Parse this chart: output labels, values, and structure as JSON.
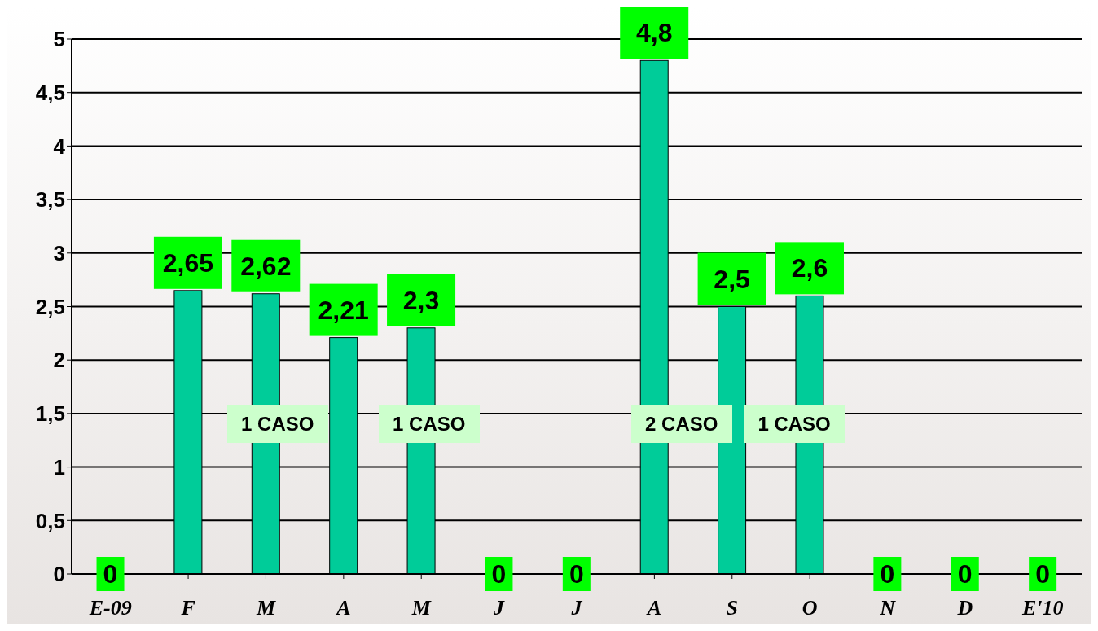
{
  "chart_data": {
    "type": "bar",
    "categories": [
      "E-09",
      "F",
      "M",
      "A",
      "M",
      "J",
      "J",
      "A",
      "S",
      "O",
      "N",
      "D",
      "E'10"
    ],
    "values": [
      0,
      2.65,
      2.62,
      2.21,
      2.3,
      0,
      0,
      4.8,
      2.5,
      2.6,
      0,
      0,
      0
    ],
    "value_labels": [
      "0",
      "2,65",
      "2,62",
      "2,21",
      "2,3",
      "0",
      "0",
      "4,8",
      "2,5",
      "2,6",
      "0",
      "0",
      "0"
    ],
    "color": "#00cc99",
    "ylim": [
      0,
      5
    ],
    "yticks": [
      0,
      {
        "value": 0.5,
        "label": "0,5"
      },
      1,
      {
        "value": 1.5,
        "label": "1,5"
      },
      2,
      {
        "value": 2.5,
        "label": "2,5"
      },
      3,
      {
        "value": 3.5,
        "label": "3,5"
      },
      4,
      {
        "value": 4.5,
        "label": "4,5"
      },
      5
    ],
    "grid": "y",
    "legend": false,
    "annotations": [
      "1 CASO",
      "1 CASO",
      "2 CASO",
      "1 CASO"
    ]
  }
}
